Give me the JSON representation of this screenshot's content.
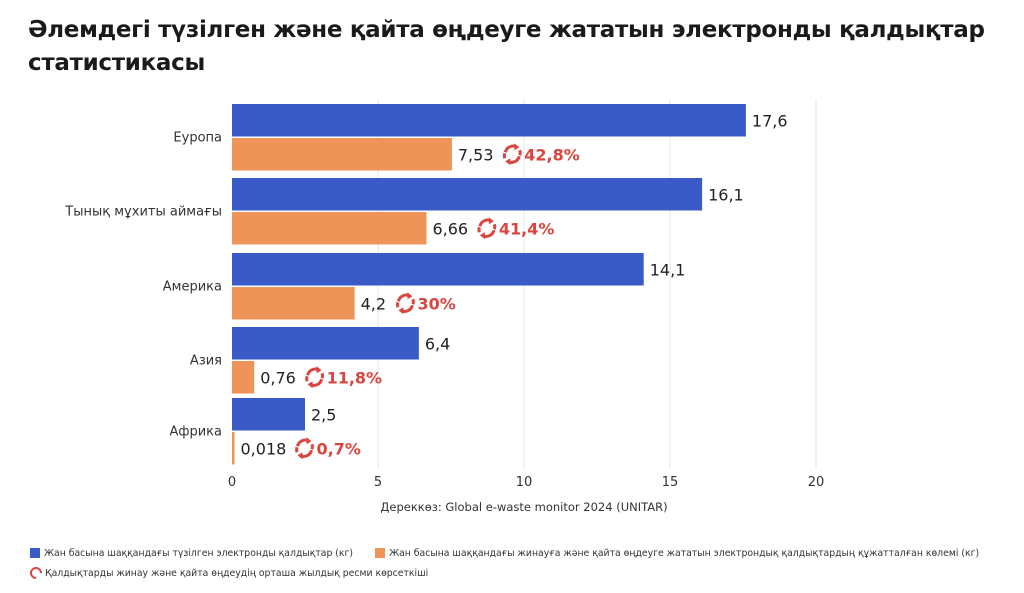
{
  "title": "Әлемдегі түзілген және қайта өңдеуге жататын электронды қалдықтар статистикасы",
  "chart_data": {
    "type": "bar",
    "orientation": "horizontal",
    "title": "Әлемдегі түзілген және қайта өңдеуге жататын электронды қалдықтар статистикасы",
    "categories": [
      "Еуропа",
      "Тынық мұхиты аймағы",
      "Америка",
      "Азия",
      "Африка"
    ],
    "series": [
      {
        "name": "Жан басына шаққандағы түзілген электронды қалдықтар (кг)",
        "color": "#3a5ac8",
        "values": [
          17.6,
          16.1,
          14.1,
          6.4,
          2.5
        ],
        "labels": [
          "17,6",
          "16,1",
          "14,1",
          "6,4",
          "2,5"
        ]
      },
      {
        "name": "Жан басына шаққандағы жинауға және қайта өңдеуге жататын электрондық қалдықтардың құжатталған көлемі (кг)",
        "color": "#ef9459",
        "values": [
          7.53,
          6.66,
          4.2,
          0.76,
          0.018
        ],
        "labels": [
          "7,53",
          "6,66",
          "4,2",
          "0,76",
          "0,018"
        ]
      }
    ],
    "annotations": {
      "name": "Қалдықтарды жинау және қайта өңдеудің орташа жылдық ресми көрсеткіші",
      "color": "#d9453f",
      "values": [
        42.8,
        41.4,
        30,
        11.8,
        0.7
      ],
      "labels": [
        "42,8%",
        "41,4%",
        "30%",
        "11,8%",
        "0,7%"
      ]
    },
    "xlim": [
      0,
      20
    ],
    "xticks": [
      0,
      5,
      10,
      15,
      20
    ],
    "xtick_labels": [
      "0",
      "5",
      "10",
      "15",
      "20"
    ],
    "xlabel": "Дереккөз: Global e-waste monitor 2024 (UNITAR)",
    "ylabel": "",
    "grid": true,
    "legend_position": "bottom-left"
  }
}
